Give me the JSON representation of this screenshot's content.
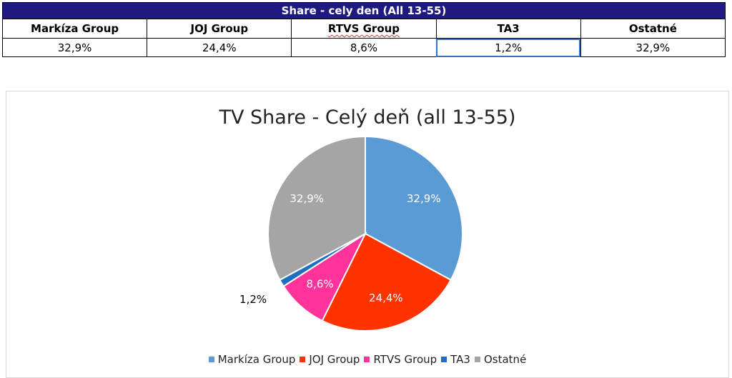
{
  "table": {
    "title": "Share - cely den (All 13-55)",
    "headers": [
      "Markíza Group",
      "JOJ Group",
      "RTVS Group",
      "TA3",
      "Ostatné"
    ],
    "values": [
      "32,9%",
      "24,4%",
      "8,6%",
      "1,2%",
      "32,9%"
    ]
  },
  "chart_data": {
    "type": "pie",
    "title": "TV Share - Celý deň (all 13-55)",
    "categories": [
      "Markíza Group",
      "JOJ Group",
      "RTVS Group",
      "TA3",
      "Ostatné"
    ],
    "values": [
      32.9,
      24.4,
      8.6,
      1.2,
      32.9
    ],
    "labels": [
      "32,9%",
      "24,4%",
      "8,6%",
      "1,2%",
      "32,9%"
    ],
    "colors": [
      "#5b9bd5",
      "#ff3300",
      "#ff3399",
      "#1f6fbf",
      "#a5a5a5"
    ],
    "legend_position": "bottom"
  }
}
